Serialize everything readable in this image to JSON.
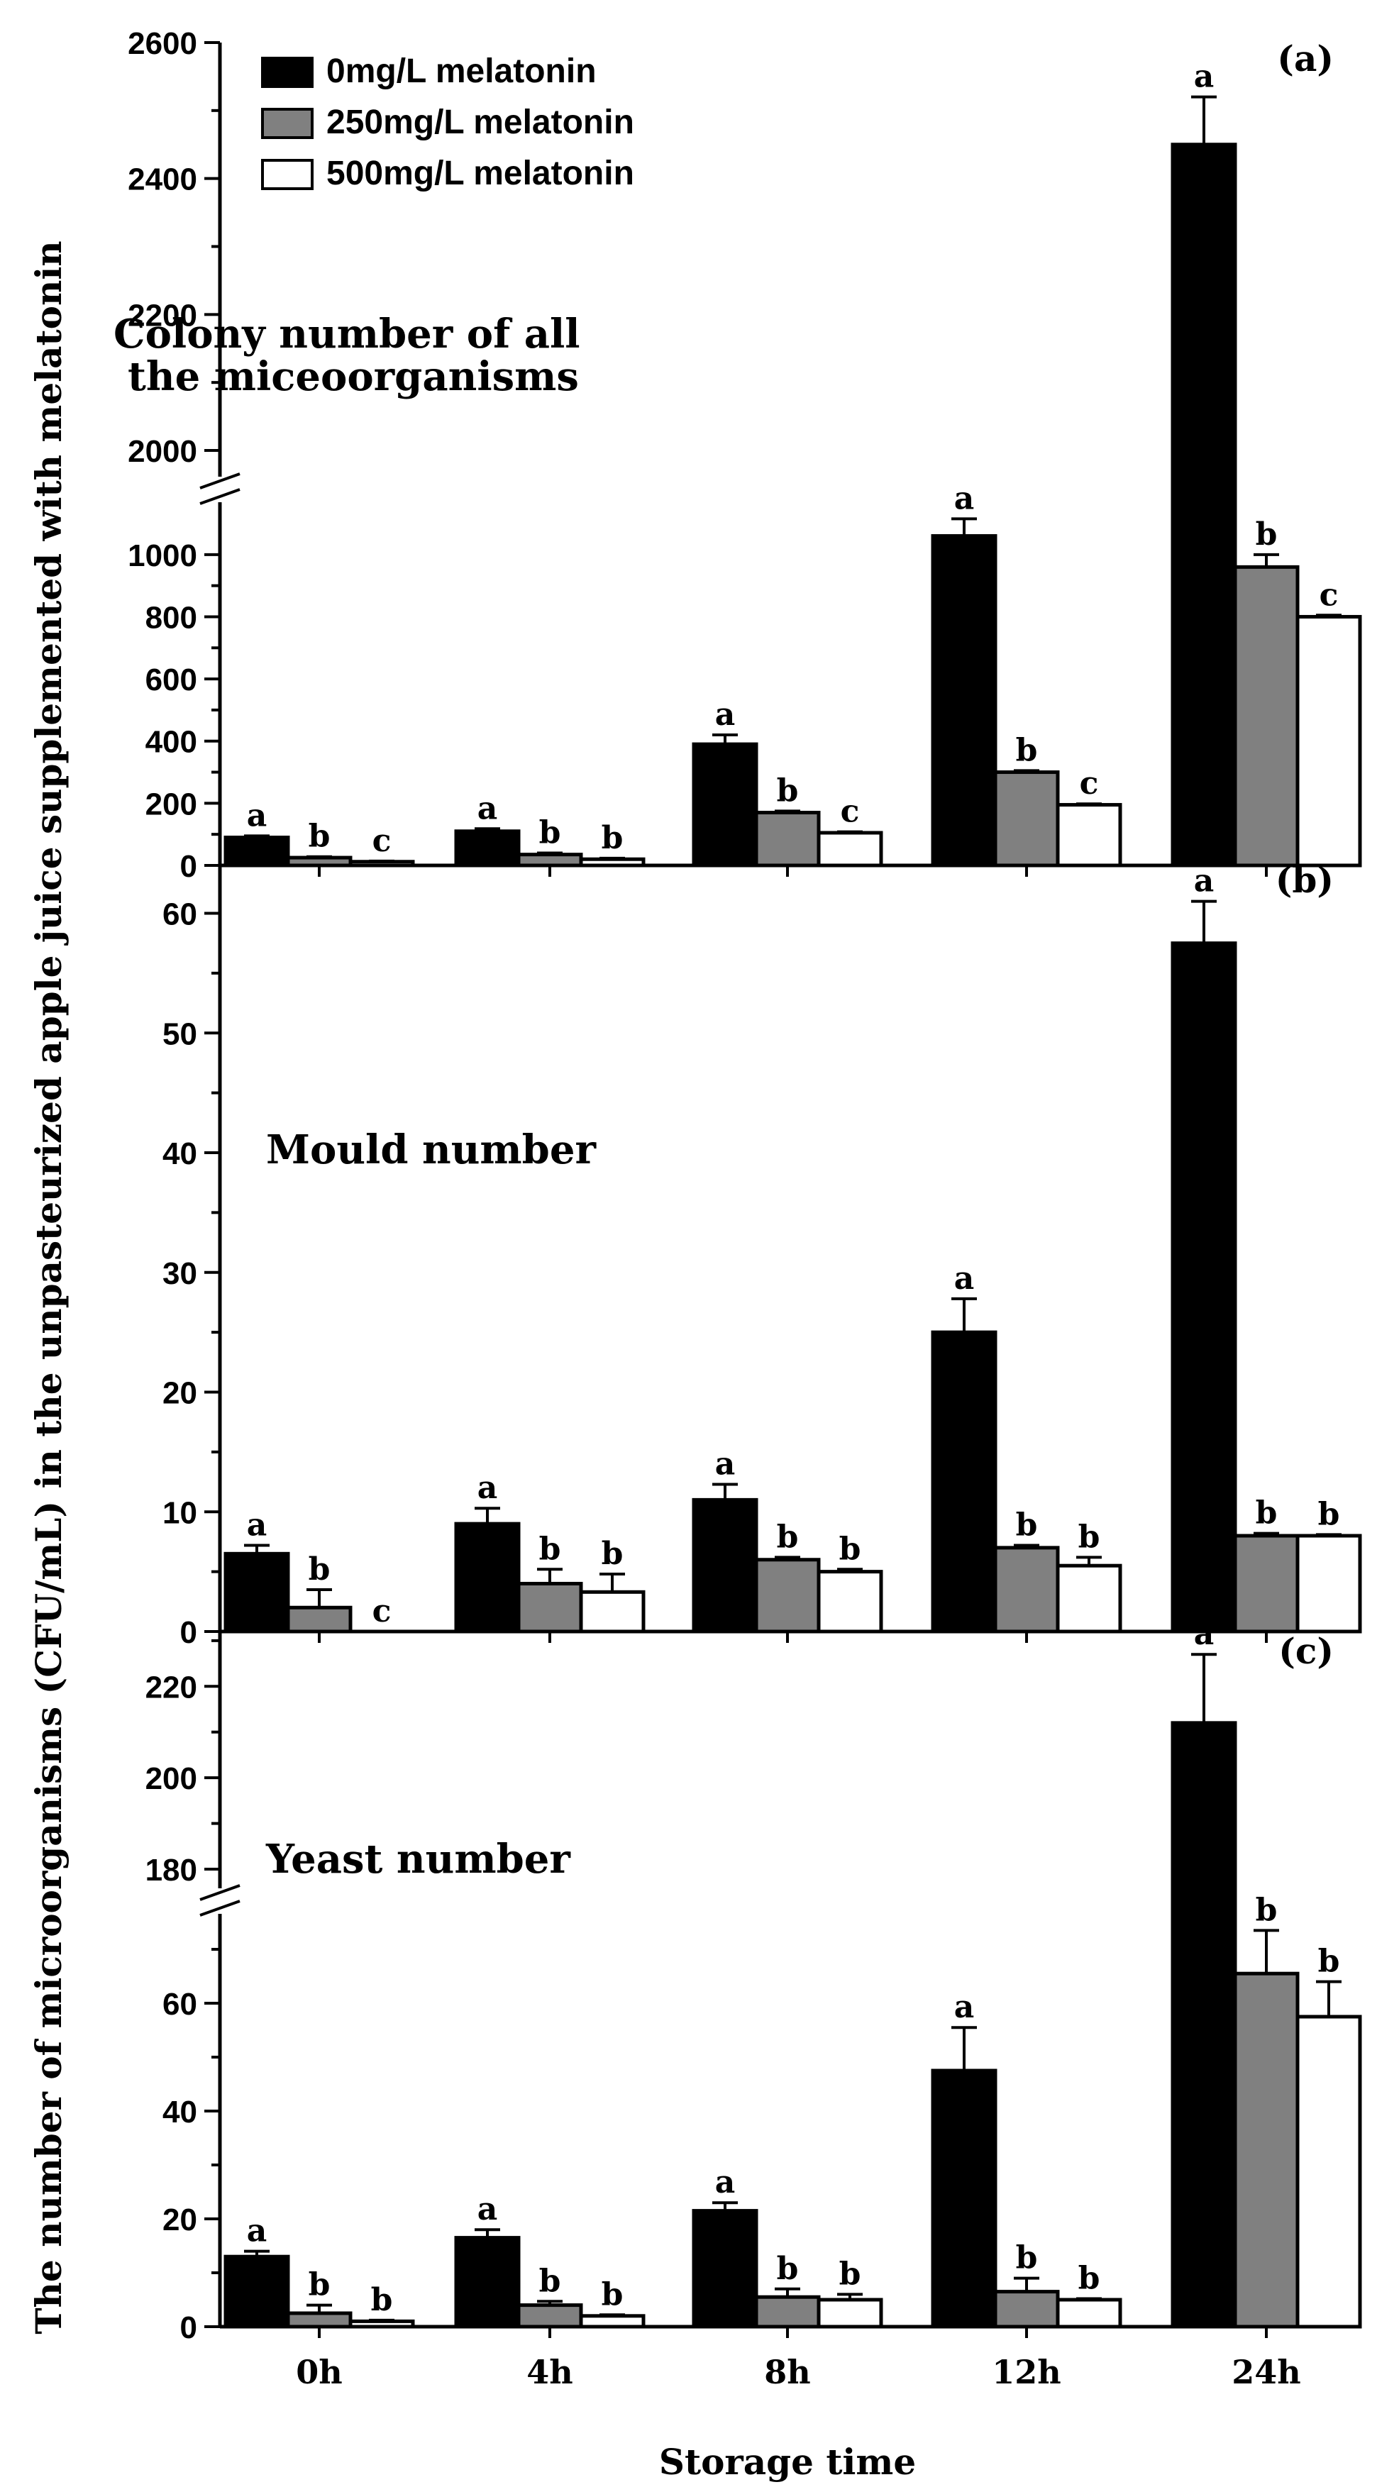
{
  "chart_data": [
    {
      "type": "bar",
      "panel_label": "(a)",
      "title": "Colony number of all the miceoorganisms",
      "title_lines": [
        "Colony number of all",
        "the miceoorganisms"
      ],
      "categories": [
        "0h",
        "4h",
        "8h",
        "12h",
        "24h"
      ],
      "series": [
        {
          "name": "0mg/L melatonin",
          "color": "#000000",
          "values": [
            90,
            110,
            390,
            1060,
            2450
          ],
          "errors": [
            5,
            8,
            30,
            55,
            70
          ],
          "letters": [
            "a",
            "a",
            "a",
            "a",
            "a"
          ]
        },
        {
          "name": "250mg/L melatonin",
          "color": "#808080",
          "values": [
            25,
            35,
            170,
            300,
            960
          ],
          "errors": [
            3,
            5,
            5,
            5,
            40
          ],
          "letters": [
            "b",
            "b",
            "b",
            "b",
            "b"
          ]
        },
        {
          "name": "500mg/L melatonin",
          "color": "#ffffff",
          "values": [
            12,
            20,
            105,
            195,
            800
          ],
          "errors": [
            2,
            3,
            3,
            3,
            5
          ],
          "letters": [
            "c",
            "b",
            "c",
            "c",
            "c"
          ]
        }
      ],
      "axis_break": {
        "lower": [
          0,
          1100
        ],
        "upper": [
          2000,
          2600
        ]
      },
      "yticks_lower": [
        0,
        200,
        400,
        600,
        800,
        1000
      ],
      "yticks_upper": [
        2000,
        2200,
        2400,
        2600
      ],
      "legend": "top-left"
    },
    {
      "type": "bar",
      "panel_label": "(b)",
      "title": "Mould number",
      "categories": [
        "0h",
        "4h",
        "8h",
        "12h",
        "24h"
      ],
      "series": [
        {
          "name": "0mg/L melatonin",
          "color": "#000000",
          "values": [
            6.5,
            9,
            11,
            25,
            57.5
          ],
          "errors": [
            0.7,
            1.3,
            1.3,
            2.8,
            3.5
          ],
          "letters": [
            "a",
            "a",
            "a",
            "a",
            "a"
          ]
        },
        {
          "name": "250mg/L melatonin",
          "color": "#808080",
          "values": [
            2,
            4,
            6,
            7,
            8
          ],
          "errors": [
            1.5,
            1.2,
            0.2,
            0.2,
            0.2
          ],
          "letters": [
            "b",
            "b",
            "b",
            "b",
            "b"
          ]
        },
        {
          "name": "500mg/L melatonin",
          "color": "#ffffff",
          "values": [
            0,
            3.3,
            5,
            5.5,
            8
          ],
          "errors": [
            0,
            1.5,
            0.2,
            0.7,
            0.1
          ],
          "letters": [
            "c",
            "b",
            "b",
            "b",
            "b"
          ]
        }
      ],
      "ylim": [
        0,
        64
      ],
      "yticks": [
        0,
        10,
        20,
        30,
        40,
        50,
        60
      ]
    },
    {
      "type": "bar",
      "panel_label": "(c)",
      "title": "Yeast number",
      "categories": [
        "0h",
        "4h",
        "8h",
        "12h",
        "24h"
      ],
      "series": [
        {
          "name": "0mg/L melatonin",
          "color": "#000000",
          "values": [
            13,
            16.5,
            21.5,
            47.5,
            212
          ],
          "errors": [
            1,
            1.5,
            1.5,
            8,
            15
          ],
          "letters": [
            "a",
            "a",
            "a",
            "a",
            "a"
          ]
        },
        {
          "name": "250mg/L melatonin",
          "color": "#808080",
          "values": [
            2.5,
            4,
            5.5,
            6.5,
            65.5
          ],
          "errors": [
            1.5,
            0.7,
            1.5,
            2.5,
            8
          ],
          "letters": [
            "b",
            "b",
            "b",
            "b",
            "b"
          ]
        },
        {
          "name": "500mg/L melatonin",
          "color": "#ffffff",
          "values": [
            1,
            2,
            5,
            5,
            57.5
          ],
          "errors": [
            0.2,
            0.2,
            1,
            0.2,
            6.5
          ],
          "letters": [
            "b",
            "b",
            "b",
            "b",
            "b"
          ]
        }
      ],
      "axis_break": {
        "lower": [
          0,
          75
        ],
        "upper": [
          180,
          232
        ]
      },
      "yticks_lower": [
        0,
        20,
        40,
        60
      ],
      "yticks_upper": [
        180,
        200,
        220
      ]
    }
  ],
  "xlabel": "Storage time",
  "ylabel": "The number of microorganisms (CFU/mL) in the unpasteurized apple juice supplemented with melatonin"
}
